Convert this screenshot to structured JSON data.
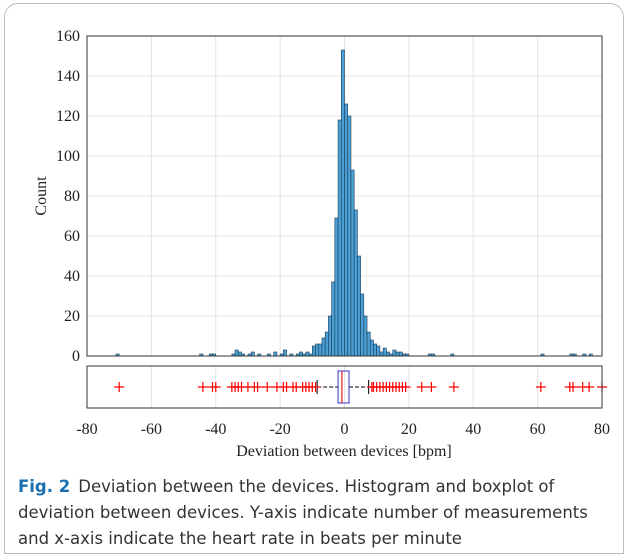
{
  "chart_data": {
    "type": "histogram",
    "ylabel": "Count",
    "xlabel": "Deviation between devices [bpm]",
    "bins": [
      -71,
      -70,
      -69,
      -68,
      -67,
      -66,
      -65,
      -64,
      -63,
      -62,
      -61,
      -60,
      -59,
      -58,
      -57,
      -56,
      -55,
      -54,
      -53,
      -52,
      -51,
      -50,
      -49,
      -48,
      -47,
      -46,
      -45,
      -44,
      -43,
      -42,
      -41,
      -40,
      -39,
      -38,
      -37,
      -36,
      -35,
      -34,
      -33,
      -32,
      -31,
      -30,
      -29,
      -28,
      -27,
      -26,
      -25,
      -24,
      -23,
      -22,
      -21,
      -20,
      -19,
      -18,
      -17,
      -16,
      -15,
      -14,
      -13,
      -12,
      -11,
      -10,
      -9,
      -8,
      -7,
      -6,
      -5,
      -4,
      -3,
      -2,
      -1,
      0,
      1,
      2,
      3,
      4,
      5,
      6,
      7,
      8,
      9,
      10,
      11,
      12,
      13,
      14,
      15,
      16,
      17,
      18,
      19,
      20,
      21,
      22,
      23,
      24,
      25,
      26,
      27,
      28,
      29,
      30,
      31,
      32,
      33,
      34,
      35,
      36,
      37,
      38,
      39,
      40,
      41,
      42,
      43,
      44,
      45,
      46,
      47,
      48,
      49,
      50,
      51,
      52,
      53,
      54,
      55,
      56,
      57,
      58,
      59,
      60,
      61,
      62,
      63,
      64,
      65,
      66,
      67,
      68,
      69,
      70,
      71,
      72,
      73,
      74,
      75,
      76,
      77
    ],
    "values": [
      1,
      0,
      0,
      0,
      0,
      0,
      0,
      0,
      0,
      0,
      0,
      0,
      0,
      0,
      0,
      0,
      0,
      0,
      0,
      0,
      0,
      0,
      0,
      0,
      0,
      0,
      1,
      0,
      0,
      1,
      1,
      0,
      0,
      0,
      0,
      0,
      1,
      3,
      2,
      1,
      0,
      1,
      2,
      0,
      1,
      0,
      0,
      1,
      0,
      2,
      0,
      1,
      3,
      0,
      1,
      0,
      1,
      2,
      1,
      2,
      1,
      5,
      6,
      6,
      9,
      12,
      20,
      37,
      69,
      118,
      153,
      126,
      120,
      93,
      73,
      50,
      31,
      20,
      12,
      8,
      6,
      5,
      2,
      4,
      2,
      1,
      3,
      2,
      2,
      1,
      1,
      0,
      0,
      0,
      0,
      0,
      0,
      1,
      1,
      0,
      0,
      0,
      0,
      0,
      1,
      0,
      0,
      0,
      0,
      0,
      0,
      0,
      0,
      0,
      0,
      0,
      0,
      0,
      0,
      0,
      0,
      0,
      0,
      0,
      0,
      0,
      0,
      0,
      0,
      0,
      0,
      0,
      1,
      0,
      0,
      0,
      0,
      0,
      0,
      0,
      0,
      1,
      1,
      0,
      0,
      1,
      0,
      1
    ],
    "color": "#4a9fd4",
    "xlim": [
      -80,
      80
    ],
    "xticks": [
      -80,
      -60,
      -40,
      -20,
      0,
      20,
      40,
      60,
      80
    ],
    "ylim": [
      0,
      160
    ],
    "yticks": [
      0,
      20,
      40,
      60,
      80,
      100,
      120,
      140,
      160
    ],
    "grid": true,
    "boxplot": {
      "whisker_low": -8.5,
      "q1": -2,
      "median": -0.8,
      "q3": 1.4,
      "whisker_high": 7.5,
      "outliers": [
        -70,
        -44,
        -41,
        -40,
        -35,
        -34,
        -33,
        -32,
        -30,
        -28,
        -27,
        -24,
        -21,
        -19,
        -18,
        -16,
        -15,
        -13,
        -12,
        -11,
        -10,
        -9,
        8.5,
        9,
        10,
        11,
        12,
        13,
        14,
        15,
        16,
        17,
        18,
        19,
        24,
        27,
        34,
        61,
        70,
        71,
        74,
        76,
        80
      ],
      "box_color": "#3333cc",
      "median_color": "#e02020",
      "outlier_color": "#ff0000"
    }
  },
  "caption": {
    "label": "Fig. 2",
    "text": "Deviation between the devices. Histogram and boxplot of deviation between devices. Y-axis indicate number of measurements and x-axis indicate the heart rate in beats per minute"
  }
}
